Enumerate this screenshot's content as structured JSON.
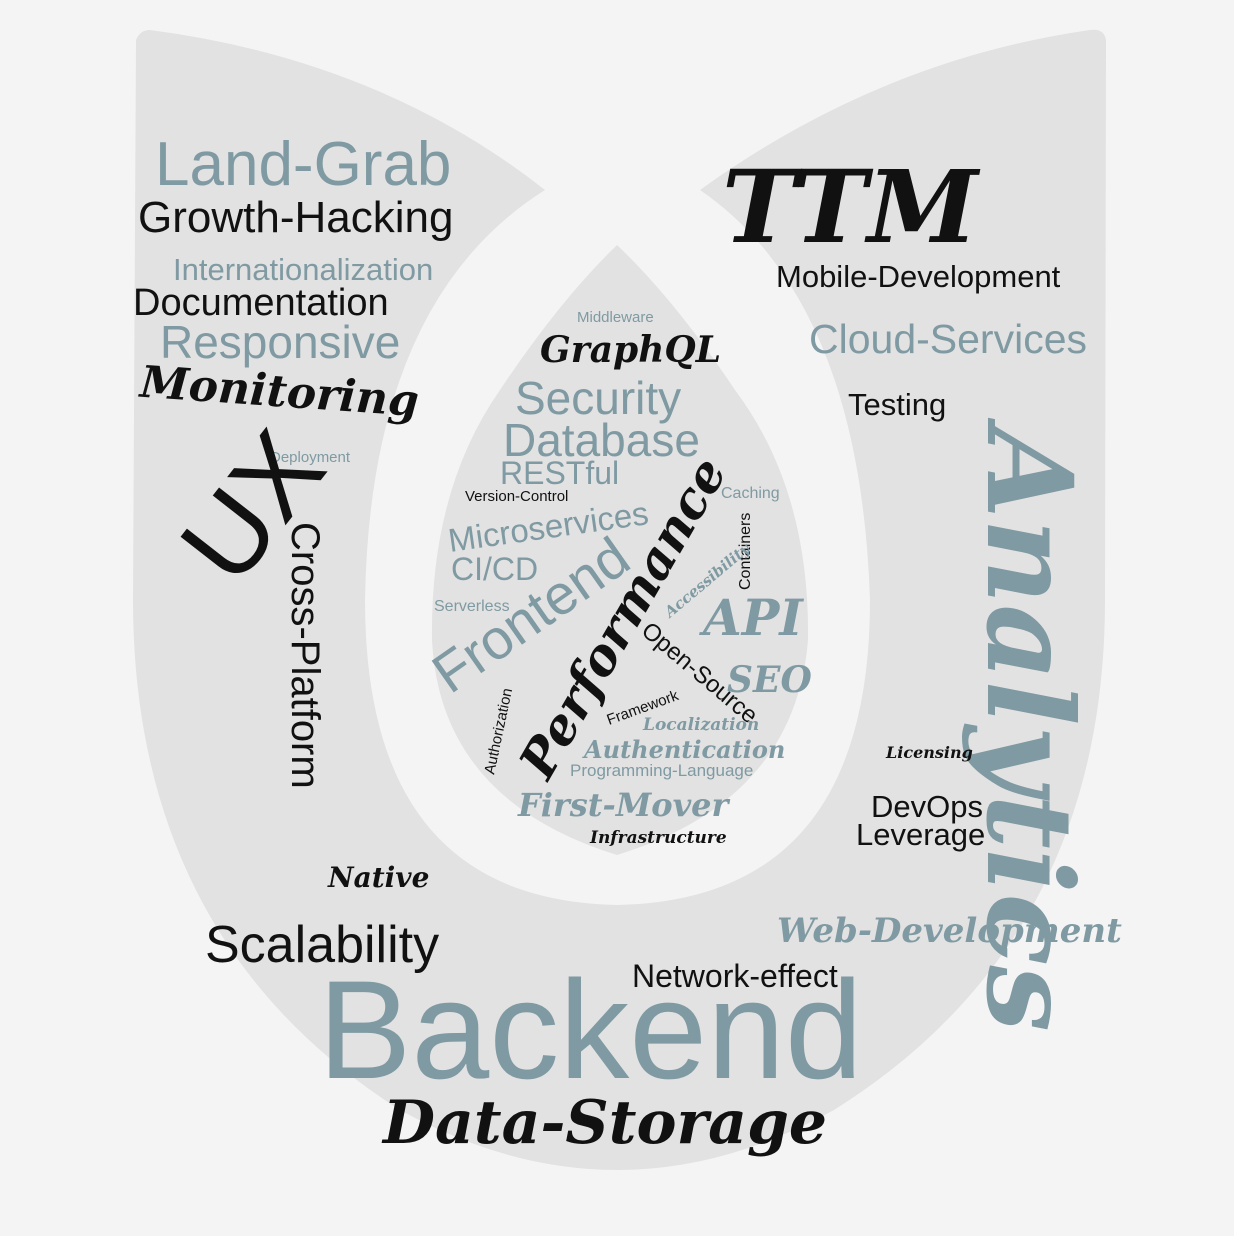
{
  "colors": {
    "background": "#f4f4f4",
    "shape": "#e2e2e2",
    "accent_gray_blue": "#7f9aa2",
    "black": "#111111"
  },
  "words": {
    "land_grab": "Land-Grab",
    "growth_hacking": "Growth-Hacking",
    "internationalization": "Internationalization",
    "documentation": "Documentation",
    "responsive": "Responsive",
    "monitoring": "Monitoring",
    "ux": "UX",
    "deployment": "Deployment",
    "cross_platform": "Cross-Platform",
    "native": "Native",
    "scalability": "Scalability",
    "backend": "Backend",
    "network_effect": "Network-effect",
    "data_storage": "Data-Storage",
    "web_development": "Web-Development",
    "ttm": "TTM",
    "mobile_development": "Mobile-Development",
    "cloud_services": "Cloud-Services",
    "testing": "Testing",
    "analytics": "Analytics",
    "licensing": "Licensing",
    "devops": "DevOps",
    "leverage": "Leverage",
    "middleware": "Middleware",
    "graphql": "GraphQL",
    "security": "Security",
    "database": "Database",
    "restful": "RESTful",
    "version_control": "Version-Control",
    "caching": "Caching",
    "microservices": "Microservices",
    "containers": "Containers",
    "ci_cd": "CI/CD",
    "accessibility": "Accessibility",
    "serverless": "Serverless",
    "frontend": "Frontend",
    "performance": "Performance",
    "api": "API",
    "open_source": "Open-Source",
    "seo": "SEO",
    "framework": "Framework",
    "authorization": "Authorization",
    "localization": "Localization",
    "authentication": "Authentication",
    "programming_language": "Programming-Language",
    "first_mover": "First-Mover",
    "infrastructure": "Infrastructure"
  }
}
